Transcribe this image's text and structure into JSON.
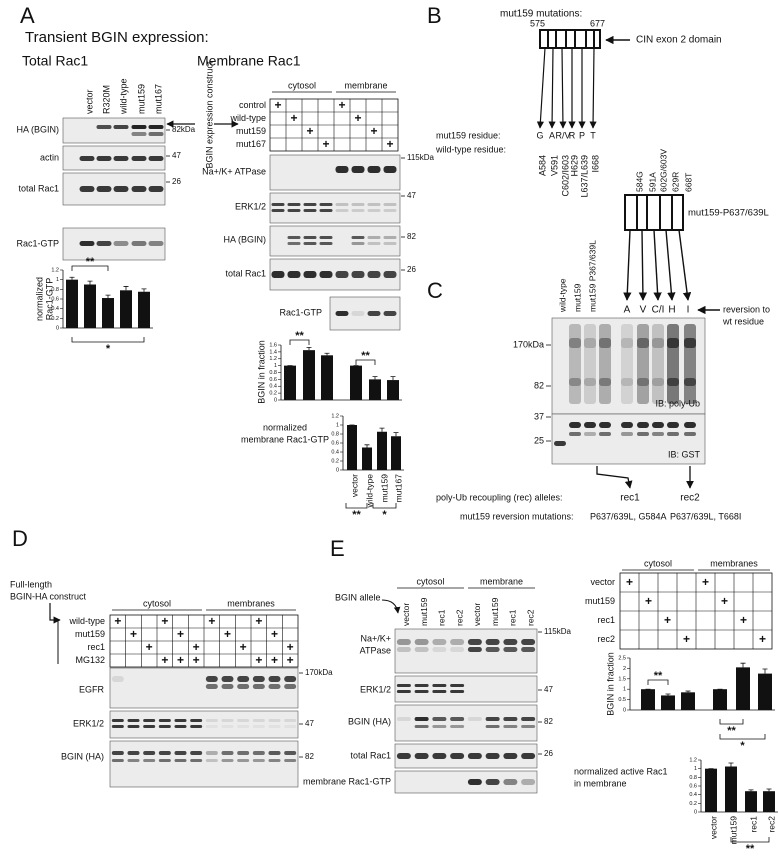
{
  "A": {
    "letter": "A",
    "title": "Transient BGIN expression:",
    "total": {
      "title": "Total Rac1",
      "lanes": [
        "vector",
        "R320M",
        "wild-type",
        "mut159",
        "mut167"
      ],
      "blots": [
        {
          "label": "HA (BGIN)",
          "marker": "82kDa"
        },
        {
          "label": "actin",
          "marker": "47"
        },
        {
          "label": "total Rac1",
          "marker": "26"
        },
        {
          "label": "Rac1-GTP"
        }
      ],
      "chart": {
        "type": "bar",
        "ylabel": [
          "normalized",
          "Rac1-GTP"
        ],
        "values": [
          1,
          0.9,
          0.62,
          0.78,
          0.75
        ],
        "errors": [
          0.05,
          0.07,
          0.06,
          0.08,
          0.06
        ],
        "ylim": [
          0,
          1.2
        ],
        "yticks": [
          0,
          0.2,
          0.4,
          0.6,
          0.8,
          1,
          1.2
        ],
        "significance": [
          "**",
          "*"
        ]
      }
    },
    "membrane": {
      "title": "Membrane Rac1",
      "construct_label": "BGIN expression construct",
      "fractions": [
        "cytosol",
        "membrane"
      ],
      "conditions": [
        "control",
        "wild-type",
        "mut159",
        "mut167"
      ],
      "matrix": [
        [
          "+",
          null,
          null,
          null,
          "+",
          null,
          null,
          null
        ],
        [
          null,
          "+",
          null,
          null,
          null,
          "+",
          null,
          null
        ],
        [
          null,
          null,
          "+",
          null,
          null,
          null,
          "+",
          null
        ],
        [
          null,
          null,
          null,
          "+",
          null,
          null,
          null,
          "+"
        ]
      ],
      "blots": [
        {
          "label": "Na+/K+ ATPase",
          "marker": "115kDa"
        },
        {
          "label": "ERK1/2",
          "marker": "47"
        },
        {
          "label": "HA (BGIN)",
          "marker": "82"
        },
        {
          "label": "total Rac1",
          "marker": "26"
        },
        {
          "label": "Rac1-GTP"
        }
      ],
      "chart1": {
        "type": "bar",
        "ylabel": "BGIN in fraction",
        "values": [
          1,
          1.45,
          1.3,
          1,
          0.6,
          0.58
        ],
        "errors": [
          0,
          0.08,
          0.06,
          0,
          0.08,
          0.1
        ],
        "ylim": [
          0,
          1.6
        ],
        "yticks": [
          0,
          0.2,
          0.4,
          0.6,
          0.8,
          1,
          1.2,
          1.4,
          1.6
        ],
        "significance": [
          "**",
          "**"
        ]
      },
      "chart2": {
        "type": "bar",
        "ylabel": [
          "normalized",
          "membrane Rac1-GTP"
        ],
        "categories": [
          "vector",
          "wild-type",
          "mut159",
          "mut167"
        ],
        "values": [
          1,
          0.5,
          0.85,
          0.75
        ],
        "errors": [
          0,
          0.06,
          0.08,
          0.08
        ],
        "ylim": [
          0,
          1.2
        ],
        "yticks": [
          0,
          0.2,
          0.4,
          0.6,
          0.8,
          1,
          1.2
        ],
        "significance": [
          "**",
          "*"
        ]
      }
    }
  },
  "B": {
    "letter": "B",
    "title": "mut159 mutations:",
    "start": 575,
    "end": 677,
    "domain_label": "CIN exon 2 domain",
    "mut_label": "mut159 residue:",
    "mut_residues": [
      "G",
      "A",
      "R/V",
      "R",
      "P",
      "T"
    ],
    "wt_label": "wild-type residue:",
    "wt_residues": [
      "A584",
      "V591",
      "C602/I603",
      "H629",
      "L637/L639",
      "I668"
    ],
    "construct2": {
      "label": "mut159-P637/639L",
      "mutations": [
        "584G",
        "591A",
        "602G/603V",
        "629R",
        "668T"
      ]
    }
  },
  "C": {
    "letter": "C",
    "lanes": [
      "wild-type",
      "mut159",
      "mut159 P367/639L"
    ],
    "reversions": [
      "A",
      "V",
      "C/I",
      "H",
      "I"
    ],
    "reversion_label": [
      "reversion to",
      "wt residue"
    ],
    "markers": [
      "170kDa",
      "82",
      "37",
      "25"
    ],
    "blots": [
      "IB: poly-Ub",
      "IB: GST"
    ],
    "rec_label": "poly-Ub recoupling (rec) alleles:",
    "reversion_mutations_label": "mut159 reversion mutations:",
    "alleles": [
      {
        "name": "rec1",
        "mutations": "P637/639L, G584A"
      },
      {
        "name": "rec2",
        "mutations": "P637/639L, T668I"
      }
    ]
  },
  "D": {
    "letter": "D",
    "construct_label": [
      "Full-length",
      "BGIN-HA construct"
    ],
    "fractions": [
      "cytosol",
      "membranes"
    ],
    "conditions": [
      "wild-type",
      "mut159",
      "rec1",
      "MG132"
    ],
    "matrix": [
      [
        "+",
        null,
        null,
        "+",
        null,
        null,
        "+",
        null,
        null,
        "+",
        null,
        null
      ],
      [
        null,
        "+",
        null,
        null,
        "+",
        null,
        null,
        "+",
        null,
        null,
        "+",
        null
      ],
      [
        null,
        null,
        "+",
        null,
        null,
        "+",
        null,
        null,
        "+",
        null,
        null,
        "+"
      ],
      [
        null,
        null,
        null,
        "+",
        "+",
        "+",
        null,
        null,
        null,
        "+",
        "+",
        "+"
      ]
    ],
    "blots": [
      {
        "label": "EGFR",
        "marker": "170kDa"
      },
      {
        "label": "ERK1/2",
        "marker": "47"
      },
      {
        "label": "BGIN (HA)",
        "marker": "82"
      }
    ]
  },
  "E": {
    "letter": "E",
    "allele_label": "BGIN allele",
    "fractions": [
      "cytosol",
      "membrane"
    ],
    "lanes": [
      "vector",
      "mut159",
      "rec1",
      "rec2",
      "vector",
      "mut159",
      "rec1",
      "rec2"
    ],
    "blots": [
      {
        "label": [
          "Na+/K+",
          "ATPase"
        ],
        "marker": "115kDa"
      },
      {
        "label": [
          "ERK1/2"
        ],
        "marker": "47"
      },
      {
        "label": [
          "BGIN (HA)"
        ],
        "marker": "82"
      },
      {
        "label": [
          "total Rac1"
        ],
        "marker": "26"
      },
      {
        "label": [
          "membrane Rac1-GTP"
        ]
      }
    ],
    "table": {
      "fractions": [
        "cytosol",
        "membranes"
      ],
      "conditions": [
        "vector",
        "mut159",
        "rec1",
        "rec2"
      ],
      "matrix": [
        [
          "+",
          null,
          null,
          null,
          "+",
          null,
          null,
          null
        ],
        [
          null,
          "+",
          null,
          null,
          null,
          "+",
          null,
          null
        ],
        [
          null,
          null,
          "+",
          null,
          null,
          null,
          "+",
          null
        ],
        [
          null,
          null,
          null,
          "+",
          null,
          null,
          null,
          "+"
        ]
      ]
    },
    "chart1": {
      "type": "bar",
      "ylabel": "BGIN in fraction",
      "values": [
        1,
        0.7,
        0.85,
        1,
        2.05,
        1.75
      ],
      "errors": [
        0,
        0.07,
        0.06,
        0,
        0.2,
        0.22
      ],
      "ylim": [
        0,
        2.5
      ],
      "yticks": [
        0,
        0.5,
        1,
        1.5,
        2,
        2.5
      ],
      "significance": [
        "**",
        "**",
        "*"
      ]
    },
    "chart2": {
      "type": "bar",
      "ylabel": [
        "normalized active Rac1",
        "in membrane"
      ],
      "categories": [
        "vector",
        "mut159",
        "rec1",
        "rec2"
      ],
      "values": [
        1,
        1.05,
        0.48,
        0.48
      ],
      "errors": [
        0,
        0.08,
        0.03,
        0.05
      ],
      "ylim": [
        0,
        1.2
      ],
      "yticks": [
        0,
        0.2,
        0.4,
        0.6,
        0.8,
        1,
        1.2
      ],
      "significance": [
        "**"
      ]
    }
  }
}
